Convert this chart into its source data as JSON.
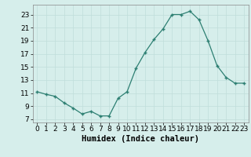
{
  "x": [
    0,
    1,
    2,
    3,
    4,
    5,
    6,
    7,
    8,
    9,
    10,
    11,
    12,
    13,
    14,
    15,
    16,
    17,
    18,
    19,
    20,
    21,
    22,
    23
  ],
  "y": [
    11.2,
    10.8,
    10.5,
    9.5,
    8.7,
    7.8,
    8.2,
    7.5,
    7.5,
    10.2,
    11.2,
    14.8,
    17.2,
    19.2,
    20.8,
    23.0,
    23.0,
    23.5,
    22.2,
    19.0,
    15.2,
    13.4,
    12.5,
    12.5
  ],
  "xlabel": "Humidex (Indice chaleur)",
  "xlim": [
    -0.5,
    23.5
  ],
  "ylim": [
    6.5,
    24.5
  ],
  "yticks": [
    7,
    9,
    11,
    13,
    15,
    17,
    19,
    21,
    23
  ],
  "xticks": [
    0,
    1,
    2,
    3,
    4,
    5,
    6,
    7,
    8,
    9,
    10,
    11,
    12,
    13,
    14,
    15,
    16,
    17,
    18,
    19,
    20,
    21,
    22,
    23
  ],
  "line_color": "#2d7f72",
  "marker": "+",
  "bg_color": "#d6eeeb",
  "grid_color": "#c0deda",
  "tick_label_fontsize": 6.5,
  "xlabel_fontsize": 7.5
}
